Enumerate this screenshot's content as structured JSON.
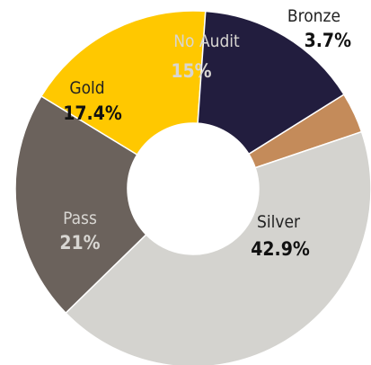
{
  "chart_data": {
    "type": "pie",
    "donut": true,
    "title": "",
    "slices": [
      {
        "label": "Bronze",
        "value": 3.7,
        "value_label": "3.7%",
        "color": "#c48b5a",
        "name_color": "#222222",
        "pct_color": "#111111"
      },
      {
        "label": "Silver",
        "value": 42.9,
        "value_label": "42.9%",
        "color": "#d4d3cf",
        "name_color": "#222222",
        "pct_color": "#111111"
      },
      {
        "label": "Pass",
        "value": 21,
        "value_label": "21%",
        "color": "#6b625c",
        "name_color": "#d8d6d2",
        "pct_color": "#d8d6d2"
      },
      {
        "label": "Gold",
        "value": 17.4,
        "value_label": "17.4%",
        "color": "#ffc800",
        "name_color": "#222222",
        "pct_color": "#111111"
      },
      {
        "label": "No Audit",
        "value": 15,
        "value_label": "15%",
        "color": "#221d3e",
        "name_color": "#d8d6d2",
        "pct_color": "#d8d6d2"
      }
    ],
    "legend": "none",
    "labels": "on-slice"
  }
}
